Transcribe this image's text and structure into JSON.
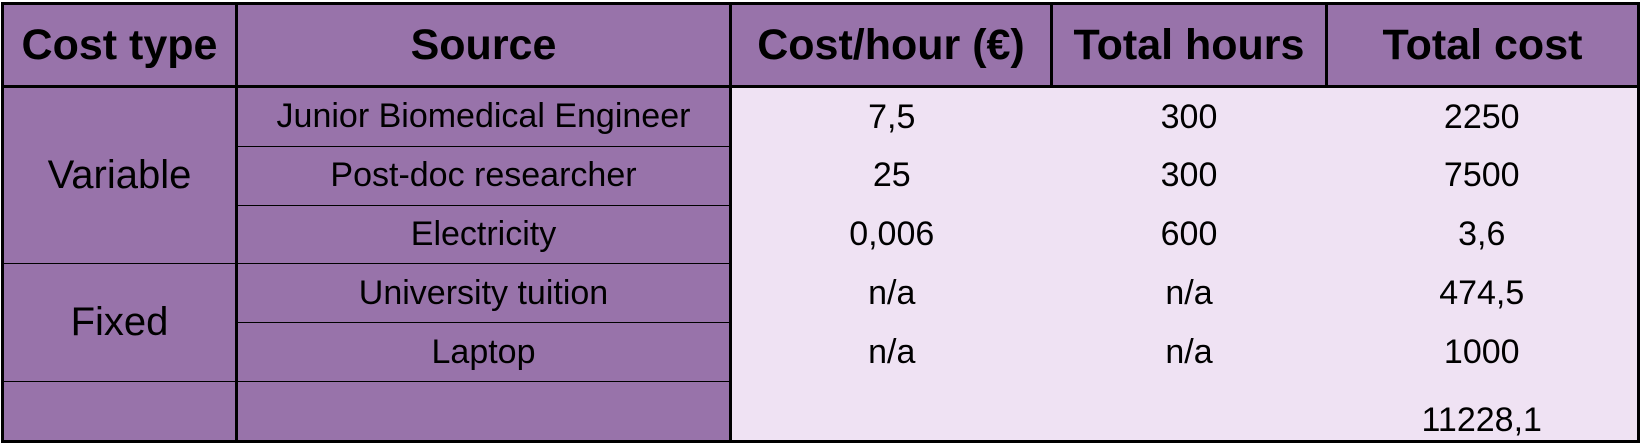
{
  "headers": {
    "cost_type": "Cost type",
    "source": "Source",
    "cost_per_hour": "Cost/hour (€)",
    "total_hours": "Total hours",
    "total_cost": "Total cost"
  },
  "groups": {
    "variable": "Variable",
    "fixed": "Fixed"
  },
  "rows": [
    {
      "source": "Junior Biomedical Engineer",
      "cost_per_hour": "7,5",
      "total_hours": "300",
      "total_cost": "2250"
    },
    {
      "source": "Post-doc researcher",
      "cost_per_hour": "25",
      "total_hours": "300",
      "total_cost": "7500"
    },
    {
      "source": "Electricity",
      "cost_per_hour": "0,006",
      "total_hours": "600",
      "total_cost": "3,6"
    },
    {
      "source": "University tuition",
      "cost_per_hour": "n/a",
      "total_hours": "n/a",
      "total_cost": "474,5"
    },
    {
      "source": "Laptop",
      "cost_per_hour": "n/a",
      "total_hours": "n/a",
      "total_cost": "1000"
    }
  ],
  "total": {
    "total_cost": "11228,1"
  },
  "colors": {
    "header_bg": "#9873aa",
    "body_bg": "#efe2f3",
    "border": "#000000"
  }
}
